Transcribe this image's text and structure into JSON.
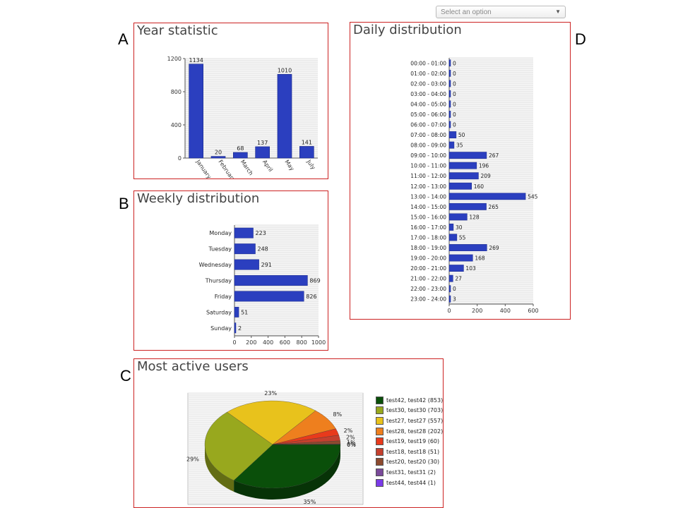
{
  "select": {
    "placeholder": "Select an option",
    "arrow": "▼"
  },
  "labels": {
    "A": "A",
    "B": "B",
    "C": "C",
    "D": "D"
  },
  "titles": {
    "year": "Year statistic",
    "weekly": "Weekly distribution",
    "users": "Most active users",
    "daily": "Daily distribution"
  },
  "chart_data": [
    {
      "id": "year",
      "type": "bar",
      "title": "Year statistic",
      "categories": [
        "January",
        "February",
        "March",
        "April",
        "May",
        "July"
      ],
      "values": [
        1134,
        20,
        68,
        137,
        1010,
        141
      ],
      "ylim": [
        0,
        1200
      ],
      "yticks": [
        0,
        400,
        800,
        1200
      ],
      "grid": true,
      "color": "#2b3fbf"
    },
    {
      "id": "weekly",
      "type": "bar",
      "orientation": "horizontal",
      "title": "Weekly distribution",
      "categories": [
        "Monday",
        "Tuesday",
        "Wednesday",
        "Thursday",
        "Friday",
        "Saturday",
        "Sunday"
      ],
      "values": [
        223,
        248,
        291,
        869,
        826,
        51,
        2
      ],
      "xlim": [
        0,
        1000
      ],
      "xticks": [
        0,
        200,
        400,
        600,
        800,
        1000
      ],
      "grid": true,
      "color": "#2b3fbf"
    },
    {
      "id": "users",
      "type": "pie",
      "title": "Most active users",
      "labels": [
        "test42, test42 (853)",
        "test30, test30 (703)",
        "test27, test27 (557)",
        "test28, test28 (202)",
        "test19, test19 (60)",
        "test18, test18 (51)",
        "test20, test20 (30)",
        "test31, test31 (2)",
        "test44, test44 (1)"
      ],
      "values": [
        853,
        703,
        557,
        202,
        60,
        51,
        30,
        2,
        1
      ],
      "percent_labels": [
        "35%",
        "29%",
        "23%",
        "8%",
        "2%",
        "2%",
        "1%",
        "0%",
        "0%"
      ],
      "colors": [
        "#0a4f0a",
        "#98a81e",
        "#e8c21c",
        "#ee7f1e",
        "#e83a1c",
        "#c4402e",
        "#8c4a2e",
        "#7a4a9a",
        "#7a3ae8"
      ],
      "legend_position": "right"
    },
    {
      "id": "daily",
      "type": "bar",
      "orientation": "horizontal",
      "title": "Daily distribution",
      "categories": [
        "00:00 - 01:00",
        "01:00 - 02:00",
        "02:00 - 03:00",
        "03:00 - 04:00",
        "04:00 - 05:00",
        "05:00 - 06:00",
        "06:00 - 07:00",
        "07:00 - 08:00",
        "08:00 - 09:00",
        "09:00 - 10:00",
        "10:00 - 11:00",
        "11:00 - 12:00",
        "12:00 - 13:00",
        "13:00 - 14:00",
        "14:00 - 15:00",
        "15:00 - 16:00",
        "16:00 - 17:00",
        "17:00 - 18:00",
        "18:00 - 19:00",
        "19:00 - 20:00",
        "20:00 - 21:00",
        "21:00 - 22:00",
        "22:00 - 23:00",
        "23:00 - 24:00"
      ],
      "values": [
        0,
        0,
        0,
        0,
        0,
        0,
        0,
        50,
        35,
        267,
        196,
        209,
        160,
        545,
        265,
        128,
        30,
        55,
        269,
        168,
        103,
        27,
        0,
        3
      ],
      "xlim": [
        0,
        600
      ],
      "xticks": [
        0,
        200,
        400,
        600
      ],
      "grid": true,
      "color": "#2b3fbf"
    }
  ]
}
